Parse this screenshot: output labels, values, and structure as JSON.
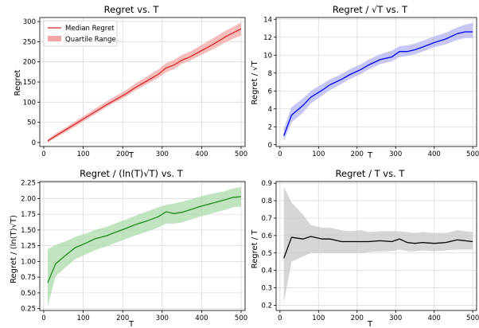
{
  "chart_data": [
    {
      "type": "line",
      "title": "Regret vs. T",
      "xlabel": "T",
      "ylabel": "Regret",
      "xlim": [
        -10,
        510
      ],
      "ylim": [
        -10,
        310
      ],
      "xticks": [
        0,
        100,
        200,
        300,
        400,
        500
      ],
      "yticks": [
        0,
        50,
        100,
        150,
        200,
        250,
        300
      ],
      "grid": true,
      "color": "#d62728",
      "band_color": "#f4a6a6",
      "legend": {
        "placement": "top-left",
        "entries": [
          "Median Regret",
          "Quartile Range"
        ]
      },
      "x": [
        10,
        30,
        60,
        80,
        110,
        130,
        160,
        180,
        210,
        230,
        260,
        290,
        310,
        330,
        350,
        370,
        400,
        430,
        460,
        480,
        500
      ],
      "series": [
        {
          "name": "Median Regret",
          "values": [
            4,
            16,
            34,
            46,
            64,
            76,
            94,
            105,
            122,
            135,
            152,
            169,
            185,
            192,
            204,
            212,
            228,
            244,
            262,
            272,
            282
          ]
        },
        {
          "name": "Quartile Range",
          "lower": [
            0,
            11,
            28,
            40,
            58,
            70,
            88,
            99,
            115,
            128,
            144,
            160,
            174,
            182,
            195,
            203,
            218,
            232,
            248,
            257,
            265
          ],
          "upper": [
            7,
            22,
            40,
            53,
            71,
            84,
            102,
            114,
            131,
            145,
            163,
            181,
            197,
            205,
            217,
            225,
            242,
            259,
            277,
            287,
            298
          ]
        }
      ]
    },
    {
      "type": "line",
      "title": "Regret / √T vs. T",
      "xlabel": "T",
      "ylabel": "Regret / √T",
      "xlim": [
        -10,
        510
      ],
      "ylim": [
        -0.2,
        14.2
      ],
      "xticks": [
        0,
        100,
        200,
        300,
        400,
        500
      ],
      "yticks": [
        0,
        2,
        4,
        6,
        8,
        10,
        12,
        14
      ],
      "grid": true,
      "color": "#0000ee",
      "band_color": "#b4b4f4",
      "x": [
        10,
        30,
        60,
        80,
        110,
        130,
        160,
        180,
        210,
        230,
        260,
        290,
        310,
        330,
        350,
        370,
        400,
        430,
        460,
        480,
        500
      ],
      "series": [
        {
          "name": "",
          "values": [
            1.0,
            3.3,
            4.4,
            5.3,
            6.1,
            6.7,
            7.3,
            7.8,
            8.4,
            8.9,
            9.5,
            9.8,
            10.4,
            10.4,
            10.6,
            10.9,
            11.4,
            11.8,
            12.4,
            12.6,
            12.6
          ]
        },
        {
          "name": "",
          "lower": [
            0.4,
            2.5,
            3.6,
            4.6,
            5.5,
            6.1,
            6.8,
            7.3,
            7.9,
            8.4,
            9.0,
            9.3,
            9.8,
            9.9,
            10.1,
            10.4,
            10.9,
            11.2,
            11.7,
            11.9,
            11.9
          ],
          "upper": [
            1.8,
            4.2,
            5.2,
            6.0,
            6.8,
            7.3,
            7.9,
            8.4,
            9.0,
            9.5,
            10.1,
            10.5,
            11.0,
            11.1,
            11.3,
            11.6,
            12.1,
            12.5,
            13.1,
            13.4,
            13.6
          ]
        }
      ]
    },
    {
      "type": "line",
      "title": "Regret / (ln(T)√T) vs. T",
      "xlabel": "T",
      "ylabel": "Regret / (ln(T)√T)",
      "xlim": [
        -10,
        510
      ],
      "ylim": [
        0.22,
        2.27
      ],
      "xticks": [
        0,
        100,
        200,
        300,
        400,
        500
      ],
      "yticks": [
        0.25,
        0.5,
        0.75,
        1.0,
        1.25,
        1.5,
        1.75,
        2.0,
        2.25
      ],
      "ytick_labels": [
        "0.25",
        "0.50",
        "0.75",
        "1.00",
        "1.25",
        "1.50",
        "1.75",
        "2.00",
        "2.25"
      ],
      "grid": true,
      "color": "#228b22",
      "band_color": "#a9dba9",
      "x": [
        10,
        30,
        60,
        80,
        110,
        130,
        160,
        180,
        210,
        230,
        260,
        290,
        310,
        330,
        350,
        370,
        400,
        430,
        460,
        480,
        500
      ],
      "series": [
        {
          "name": "",
          "values": [
            0.66,
            0.96,
            1.12,
            1.22,
            1.3,
            1.36,
            1.41,
            1.46,
            1.53,
            1.58,
            1.64,
            1.71,
            1.79,
            1.76,
            1.78,
            1.82,
            1.88,
            1.93,
            1.98,
            2.02,
            2.03
          ]
        },
        {
          "name": "",
          "lower": [
            0.28,
            0.76,
            0.93,
            1.04,
            1.12,
            1.18,
            1.24,
            1.29,
            1.36,
            1.41,
            1.47,
            1.54,
            1.6,
            1.6,
            1.62,
            1.66,
            1.72,
            1.77,
            1.82,
            1.86,
            1.87
          ],
          "upper": [
            1.19,
            1.26,
            1.33,
            1.39,
            1.45,
            1.5,
            1.55,
            1.6,
            1.67,
            1.72,
            1.79,
            1.86,
            1.9,
            1.92,
            1.95,
            1.98,
            2.04,
            2.08,
            2.12,
            2.16,
            2.18
          ]
        }
      ]
    },
    {
      "type": "line",
      "title": "Regret / T vs. T",
      "xlabel": "T",
      "ylabel": "Regret / T",
      "xlim": [
        -10,
        510
      ],
      "ylim": [
        0.17,
        0.91
      ],
      "xticks": [
        0,
        100,
        200,
        300,
        400,
        500
      ],
      "yticks": [
        0.2,
        0.3,
        0.4,
        0.5,
        0.6,
        0.7,
        0.8,
        0.9
      ],
      "grid": true,
      "color": "#000000",
      "band_color": "#c8c8c8",
      "x": [
        10,
        30,
        60,
        80,
        110,
        130,
        160,
        180,
        210,
        230,
        260,
        290,
        310,
        330,
        350,
        370,
        400,
        430,
        460,
        480,
        500
      ],
      "series": [
        {
          "name": "",
          "values": [
            0.47,
            0.59,
            0.58,
            0.595,
            0.58,
            0.58,
            0.565,
            0.565,
            0.565,
            0.565,
            0.57,
            0.565,
            0.58,
            0.56,
            0.555,
            0.56,
            0.555,
            0.56,
            0.575,
            0.57,
            0.565
          ]
        },
        {
          "name": "",
          "lower": [
            0.21,
            0.45,
            0.48,
            0.5,
            0.5,
            0.5,
            0.5,
            0.5,
            0.5,
            0.505,
            0.51,
            0.51,
            0.52,
            0.51,
            0.51,
            0.515,
            0.51,
            0.515,
            0.52,
            0.52,
            0.52
          ],
          "upper": [
            0.88,
            0.79,
            0.72,
            0.66,
            0.645,
            0.645,
            0.63,
            0.625,
            0.63,
            0.62,
            0.625,
            0.625,
            0.625,
            0.62,
            0.615,
            0.62,
            0.615,
            0.615,
            0.63,
            0.625,
            0.62
          ]
        }
      ]
    }
  ]
}
